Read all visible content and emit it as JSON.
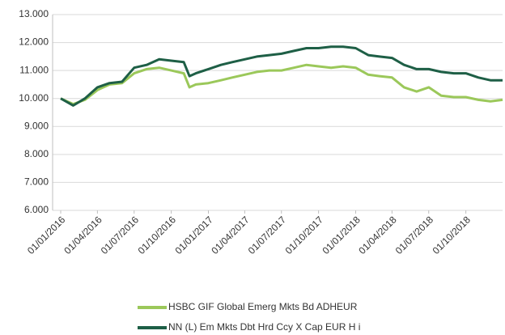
{
  "chart_data": {
    "type": "line",
    "x": [
      "01/01/2016",
      "01/02/2016",
      "01/03/2016",
      "01/04/2016",
      "01/05/2016",
      "01/06/2016",
      "01/07/2016",
      "01/08/2016",
      "01/09/2016",
      "01/10/2016",
      "01/11/2016",
      "15/11/2016",
      "01/12/2016",
      "01/01/2017",
      "01/02/2017",
      "01/03/2017",
      "01/04/2017",
      "01/05/2017",
      "01/06/2017",
      "01/07/2017",
      "01/08/2017",
      "01/09/2017",
      "01/10/2017",
      "01/11/2017",
      "01/12/2017",
      "01/01/2018",
      "01/02/2018",
      "01/03/2018",
      "01/04/2018",
      "01/05/2018",
      "01/06/2018",
      "01/07/2018",
      "01/08/2018",
      "01/09/2018",
      "01/10/2018",
      "01/11/2018",
      "01/12/2018",
      "31/12/2018"
    ],
    "series": [
      {
        "name": "HSBC GIF Global Emerg Mkts Bd ADHEUR",
        "color": "#9bc85a",
        "values": [
          10000,
          9800,
          9950,
          10300,
          10500,
          10550,
          10900,
          11050,
          11100,
          11000,
          10900,
          10400,
          10500,
          10550,
          10650,
          10750,
          10850,
          10950,
          11000,
          11000,
          11100,
          11200,
          11150,
          11100,
          11150,
          11100,
          10850,
          10800,
          10750,
          10400,
          10250,
          10400,
          10100,
          10050,
          10050,
          9950,
          9900,
          9950
        ]
      },
      {
        "name": "NN (L) Em Mkts Dbt Hrd Ccy X Cap EUR H i",
        "color": "#1e5f46",
        "values": [
          10000,
          9750,
          10000,
          10400,
          10550,
          10600,
          11100,
          11200,
          11400,
          11350,
          11300,
          10800,
          10900,
          11050,
          11200,
          11300,
          11400,
          11500,
          11550,
          11600,
          11700,
          11800,
          11800,
          11850,
          11850,
          11800,
          11550,
          11500,
          11450,
          11200,
          11050,
          11050,
          10950,
          10900,
          10900,
          10750,
          10650,
          10650
        ]
      }
    ],
    "xlim": [
      "01/01/2016",
      "31/12/2018"
    ],
    "xticks": [
      "01/01/2016",
      "01/04/2016",
      "01/07/2016",
      "01/10/2016",
      "01/01/2017",
      "01/04/2017",
      "01/07/2017",
      "01/10/2017",
      "01/01/2018",
      "01/04/2018",
      "01/07/2018",
      "01/10/2018"
    ],
    "ylim": [
      6000,
      13000
    ],
    "yticks": [
      {
        "value": 6000,
        "label": "6.000"
      },
      {
        "value": 7000,
        "label": "7.000"
      },
      {
        "value": 8000,
        "label": "8.000"
      },
      {
        "value": 9000,
        "label": "9.000"
      },
      {
        "value": 10000,
        "label": "10.000"
      },
      {
        "value": 11000,
        "label": "11.000"
      },
      {
        "value": 12000,
        "label": "12.000"
      },
      {
        "value": 13000,
        "label": "13.000"
      }
    ],
    "grid": true
  }
}
